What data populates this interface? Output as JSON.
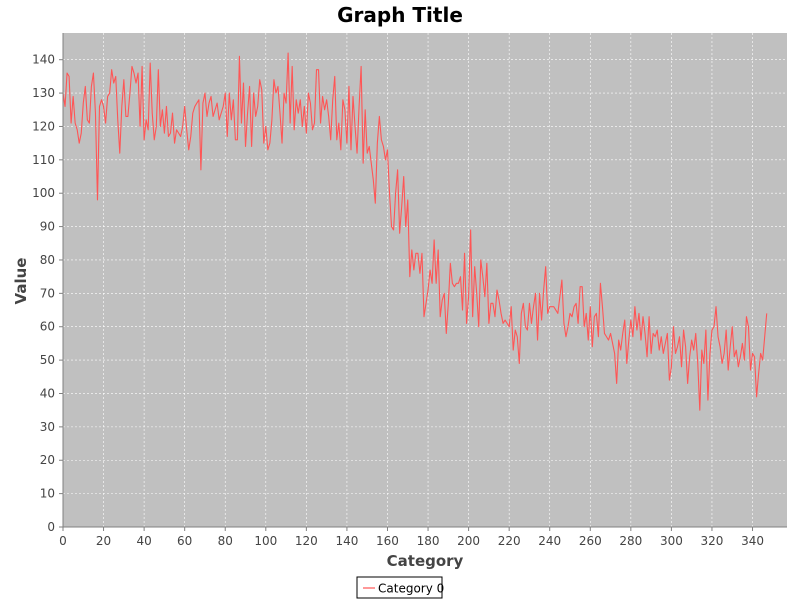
{
  "chart_data": {
    "type": "line",
    "title": "Graph Title",
    "xlabel": "Category",
    "ylabel": "Value",
    "xlim": [
      0,
      357
    ],
    "ylim": [
      0,
      148
    ],
    "x_ticks": [
      "0",
      "20",
      "40",
      "60",
      "80",
      "100",
      "120",
      "140",
      "160",
      "180",
      "200",
      "220",
      "240",
      "260",
      "280",
      "300",
      "320",
      "340"
    ],
    "y_ticks": [
      "0",
      "10",
      "20",
      "30",
      "40",
      "50",
      "60",
      "70",
      "80",
      "90",
      "100",
      "110",
      "120",
      "130",
      "140"
    ],
    "grid": true,
    "legend_position": "bottom-center",
    "colors": {
      "plot_background": "#c0c0c0",
      "grid": "#ffffff",
      "series": "#ff5555",
      "axis_text": "#444444"
    },
    "series": [
      {
        "name": "Category 0",
        "x_start": 0,
        "x_step": 1,
        "values": [
          130,
          126,
          136,
          135,
          121,
          129,
          121,
          119,
          115,
          118,
          127,
          132,
          122,
          121,
          132,
          136,
          124,
          98,
          126,
          128,
          126,
          121,
          129,
          130,
          137,
          133,
          135,
          122,
          112,
          126,
          134,
          123,
          123,
          130,
          138,
          136,
          133,
          136,
          120,
          138,
          116,
          122,
          119,
          139,
          124,
          116,
          120,
          137,
          120,
          125,
          118,
          126,
          117,
          118,
          124,
          115,
          119,
          118,
          117,
          120,
          126,
          119,
          113,
          117,
          124,
          126,
          127,
          128,
          107,
          127,
          130,
          123,
          127,
          129,
          123,
          125,
          127,
          122,
          124,
          126,
          130,
          117,
          130,
          122,
          128,
          116,
          116,
          141,
          121,
          133,
          114,
          124,
          132,
          114,
          130,
          123,
          126,
          134,
          131,
          115,
          120,
          113,
          115,
          122,
          134,
          130,
          132,
          124,
          115,
          130,
          127,
          142,
          121,
          138,
          119,
          128,
          124,
          128,
          120,
          126,
          118,
          130,
          127,
          119,
          121,
          137,
          137,
          121,
          129,
          125,
          128,
          123,
          116,
          128,
          135,
          116,
          121,
          113,
          128,
          125,
          115,
          132,
          113,
          129,
          120,
          112,
          126,
          138,
          109,
          125,
          112,
          114,
          109,
          104,
          97,
          115,
          123,
          116,
          114,
          110,
          113,
          100,
          90,
          89,
          100,
          107,
          88,
          96,
          105,
          90,
          98,
          75,
          83,
          77,
          82,
          82,
          76,
          82,
          63,
          67,
          71,
          77,
          73,
          86,
          73,
          83,
          63,
          68,
          70,
          58,
          67,
          79,
          73,
          72,
          73,
          73,
          75,
          65,
          82,
          61,
          69,
          89,
          63,
          78,
          70,
          60,
          80,
          75,
          69,
          79,
          61,
          67,
          67,
          63,
          71,
          68,
          64,
          61,
          62,
          61,
          60,
          66,
          53,
          59,
          57,
          49,
          64,
          67,
          60,
          59,
          67,
          61,
          66,
          70,
          56,
          70,
          62,
          71,
          78,
          64,
          66,
          66,
          66,
          65,
          64,
          69,
          74,
          61,
          57,
          60,
          64,
          63,
          66,
          67,
          61,
          72,
          72,
          60,
          64,
          56,
          66,
          54,
          63,
          64,
          57,
          73,
          66,
          58,
          57,
          56,
          58,
          55,
          52,
          43,
          56,
          53,
          58,
          62,
          49,
          56,
          62,
          57,
          66,
          59,
          64,
          56,
          63,
          58,
          51,
          63,
          52,
          58,
          57,
          59,
          53,
          57,
          52,
          55,
          58,
          44,
          48,
          60,
          52,
          54,
          57,
          48,
          59,
          54,
          43,
          51,
          56,
          53,
          58,
          49,
          35,
          53,
          49,
          59,
          38,
          52,
          59,
          60,
          66,
          57,
          54,
          49,
          52,
          59,
          47,
          54,
          60,
          51,
          53,
          48,
          51,
          55,
          50,
          63,
          60,
          47,
          52,
          51,
          39,
          46,
          52,
          50,
          57,
          64
        ]
      }
    ]
  }
}
